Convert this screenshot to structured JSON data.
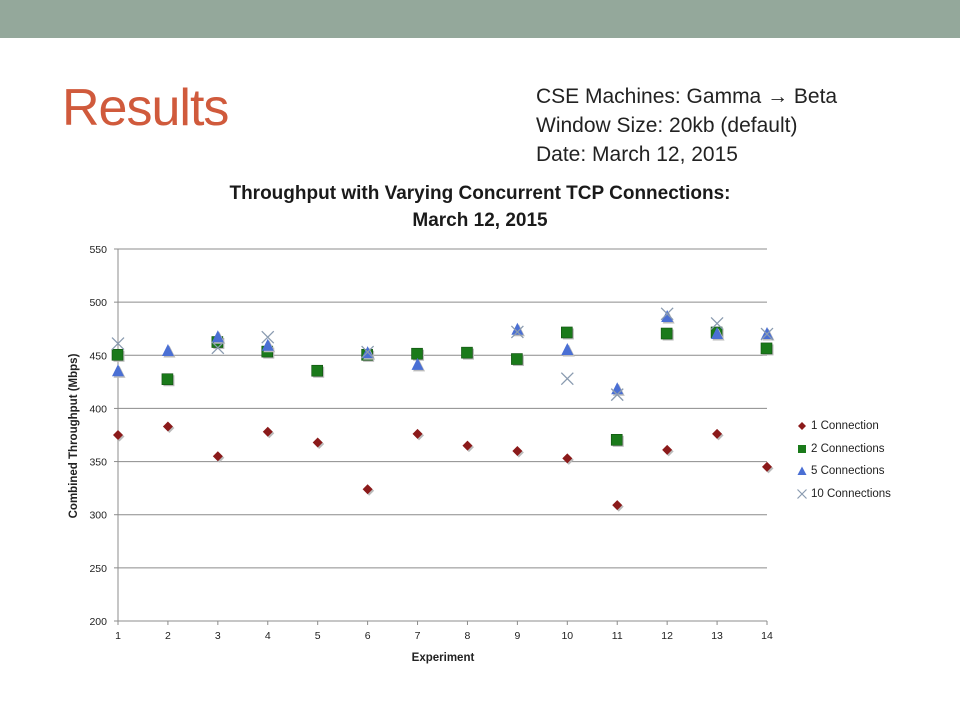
{
  "slide": {
    "title": "Results",
    "info_lines": [
      "CSE Machines: Gamma → Beta",
      "Window Size: 20kb (default)",
      "Date: March 12, 2015"
    ]
  },
  "chart_data": {
    "type": "scatter",
    "title_lines": [
      "Throughput with Varying Concurrent TCP Connections:",
      "March 12, 2015"
    ],
    "xlabel": "Experiment",
    "ylabel": "Combined Throughput (Mbps)",
    "xlim": [
      1,
      14
    ],
    "ylim": [
      200,
      550
    ],
    "x_ticks": [
      1,
      2,
      3,
      4,
      5,
      6,
      7,
      8,
      9,
      10,
      11,
      12,
      13,
      14
    ],
    "y_ticks": [
      200,
      250,
      300,
      350,
      400,
      450,
      500,
      550
    ],
    "grid": "horizontal",
    "legend_position": "right",
    "series": [
      {
        "name": "1 Connection",
        "marker": "diamond",
        "color": "#8b1a1a",
        "points": [
          [
            1,
            375
          ],
          [
            2,
            383
          ],
          [
            3,
            355
          ],
          [
            4,
            378
          ],
          [
            5,
            368
          ],
          [
            6,
            324
          ],
          [
            7,
            376
          ],
          [
            8,
            365
          ],
          [
            9,
            360
          ],
          [
            10,
            353
          ],
          [
            11,
            309
          ],
          [
            12,
            361
          ],
          [
            13,
            376
          ],
          [
            14,
            345
          ]
        ]
      },
      {
        "name": "2 Connections",
        "marker": "square",
        "color": "#1a7a1a",
        "points": [
          [
            1,
            450
          ],
          [
            2,
            427
          ],
          [
            3,
            462
          ],
          [
            4,
            453
          ],
          [
            5,
            435
          ],
          [
            6,
            450
          ],
          [
            7,
            451
          ],
          [
            8,
            452
          ],
          [
            9,
            446
          ],
          [
            10,
            471
          ],
          [
            11,
            370
          ],
          [
            12,
            470
          ],
          [
            13,
            471
          ],
          [
            14,
            456
          ]
        ]
      },
      {
        "name": "5 Connections",
        "marker": "triangle",
        "color": "#4a6fd4",
        "points": [
          [
            1,
            435
          ],
          [
            2,
            454
          ],
          [
            3,
            467
          ],
          [
            4,
            459
          ],
          [
            6,
            452
          ],
          [
            7,
            441
          ],
          [
            9,
            474
          ],
          [
            10,
            455
          ],
          [
            11,
            418
          ],
          [
            12,
            486
          ],
          [
            13,
            470
          ],
          [
            14,
            470
          ]
        ]
      },
      {
        "name": "10 Connections",
        "marker": "x",
        "color": "#8a9bb0",
        "points": [
          [
            1,
            461
          ],
          [
            3,
            457
          ],
          [
            4,
            467
          ],
          [
            6,
            453
          ],
          [
            9,
            472
          ],
          [
            10,
            428
          ],
          [
            11,
            413
          ],
          [
            12,
            489
          ],
          [
            13,
            480
          ],
          [
            14,
            470
          ]
        ]
      }
    ]
  }
}
